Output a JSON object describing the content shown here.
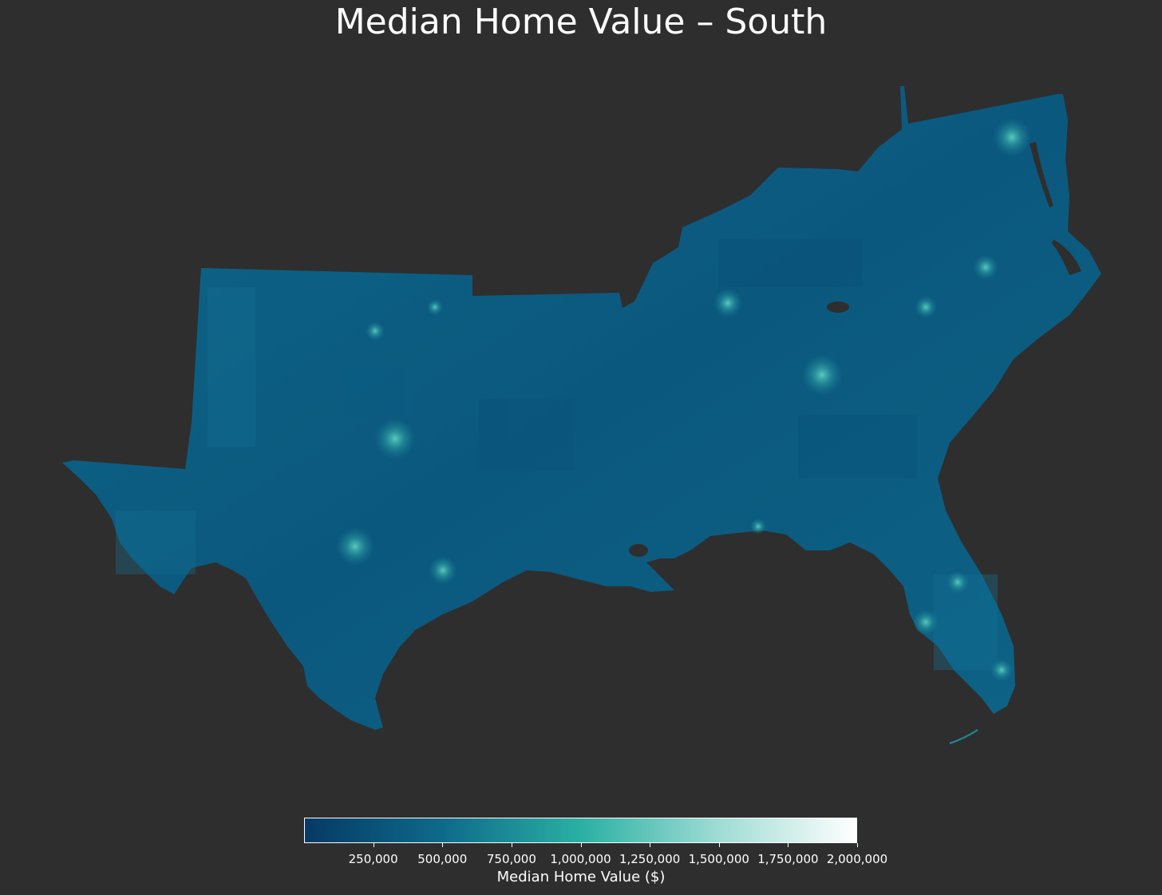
{
  "title": "Median Home Value – South",
  "colorbar": {
    "label": "Median Home Value ($)",
    "min": 0,
    "max": 2000000,
    "ticks": [
      {
        "value": 250000,
        "label": "250,000"
      },
      {
        "value": 500000,
        "label": "500,000"
      },
      {
        "value": 750000,
        "label": "750,000"
      },
      {
        "value": 1000000,
        "label": "1,000,000"
      },
      {
        "value": 1250000,
        "label": "1,250,000"
      },
      {
        "value": 1500000,
        "label": "1,500,000"
      },
      {
        "value": 1750000,
        "label": "1,750,000"
      },
      {
        "value": 2000000,
        "label": "2,000,000"
      }
    ],
    "colors": [
      "#053a63",
      "#0f6a8a",
      "#2ab0a3",
      "#9fdcd4",
      "#ffffff"
    ]
  },
  "colors": {
    "background": "#2e2e2e",
    "region_fill": "#0b577e",
    "region_fill_light": "#1d7f93",
    "hotspot": "#37b5a8"
  }
}
